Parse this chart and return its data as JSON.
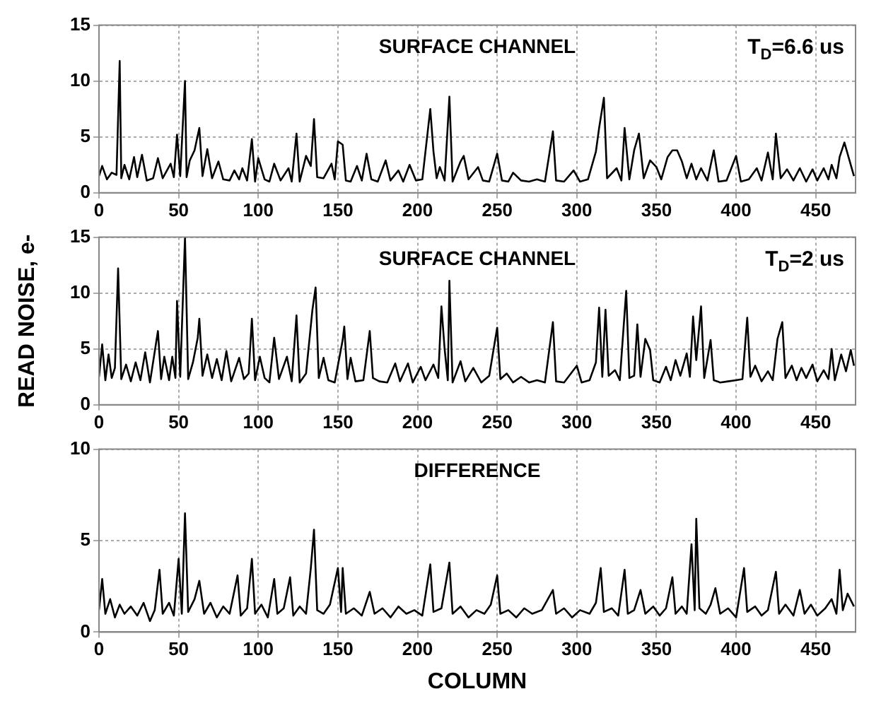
{
  "chart_data": [
    {
      "type": "line",
      "annotations": [
        "SURFACE CHANNEL",
        "T$_{D}$=6.6 us"
      ],
      "xlim": [
        0,
        475
      ],
      "xticks": [
        0,
        50,
        100,
        150,
        200,
        250,
        300,
        350,
        400,
        450
      ],
      "ylim": [
        0,
        15
      ],
      "yticks": [
        0,
        5,
        10,
        15
      ],
      "grid": true,
      "marker": "none",
      "line_style": "solid",
      "series": [
        {
          "color": "#000000",
          "x": [
            0,
            2,
            5,
            8,
            11,
            13,
            14,
            16,
            19,
            22,
            24,
            27,
            30,
            34,
            37,
            40,
            45,
            47,
            49,
            51,
            54,
            55,
            57,
            60,
            63,
            65,
            68,
            71,
            75,
            78,
            82,
            85,
            88,
            90,
            93,
            96,
            98,
            100,
            104,
            107,
            110,
            114,
            119,
            121,
            124,
            126,
            130,
            133,
            135,
            137,
            141,
            146,
            148,
            150,
            153,
            155,
            158,
            162,
            165,
            168,
            171,
            175,
            180,
            183,
            188,
            191,
            195,
            199,
            203,
            208,
            210,
            212,
            214,
            217,
            220,
            222,
            227,
            229,
            232,
            238,
            241,
            245,
            250,
            253,
            257,
            260,
            265,
            270,
            275,
            280,
            285,
            287,
            292,
            298,
            302,
            307,
            312,
            314,
            317,
            319,
            325,
            328,
            330,
            333,
            336,
            339,
            342,
            346,
            350,
            353,
            357,
            360,
            363,
            366,
            369,
            372,
            375,
            378,
            382,
            386,
            389,
            394,
            400,
            403,
            408,
            413,
            416,
            420,
            423,
            425,
            428,
            432,
            436,
            440,
            444,
            448,
            451,
            455,
            458,
            460,
            463,
            465,
            468,
            471,
            474
          ],
          "values": [
            1.5,
            2.4,
            1.2,
            1.8,
            1.6,
            11.8,
            1.3,
            2.5,
            1.2,
            3.2,
            1.4,
            3.4,
            1.1,
            1.3,
            3.1,
            1.3,
            2.6,
            1.4,
            5.2,
            1.5,
            10,
            1.4,
            2.9,
            3.8,
            5.8,
            1.5,
            3.9,
            1.3,
            2.8,
            1.2,
            1.1,
            2,
            1.2,
            2.2,
            1.1,
            4.8,
            1.0,
            3.1,
            1.2,
            1.0,
            2.6,
            1.1,
            2.2,
            1.0,
            5.3,
            1.0,
            3.3,
            2.4,
            6.6,
            1.4,
            1.3,
            2.6,
            1.2,
            4.6,
            4.3,
            1.1,
            1.0,
            2.4,
            1.1,
            3.5,
            1.2,
            1.0,
            2.9,
            1.1,
            2,
            1.0,
            2.5,
            1.1,
            1.2,
            7.5,
            3.7,
            1.3,
            2.3,
            1.1,
            8.6,
            1.0,
            2.8,
            3.3,
            1.2,
            2.3,
            1.1,
            1.0,
            3.5,
            1.1,
            1.0,
            1.8,
            1.1,
            1.0,
            1.2,
            1.0,
            5.5,
            1.1,
            1.0,
            2.0,
            1.0,
            1.2,
            3.7,
            5.8,
            8.5,
            1.3,
            2.2,
            1.1,
            5.8,
            1.2,
            3.8,
            5.3,
            1.3,
            2.9,
            2.3,
            1.2,
            3.2,
            3.8,
            3.8,
            2.8,
            1.3,
            2.6,
            1.2,
            2.2,
            1.1,
            3.8,
            1.0,
            1.1,
            3.3,
            1.0,
            1.2,
            2.2,
            1.1,
            3.6,
            1.2,
            5.3,
            1.3,
            2.1,
            1.1,
            2.2,
            1.0,
            2.1,
            1.1,
            2.2,
            1.2,
            2.5,
            1.3,
            3.2,
            4.5,
            3.0,
            1.5
          ]
        }
      ]
    },
    {
      "type": "line",
      "ylabel": "READ NOISE, e-",
      "annotations": [
        "SURFACE CHANNEL",
        "T$_{D}$=2 us"
      ],
      "xlim": [
        0,
        475
      ],
      "xticks": [
        0,
        50,
        100,
        150,
        200,
        250,
        300,
        350,
        400,
        450
      ],
      "ylim": [
        0,
        15
      ],
      "yticks": [
        0,
        5,
        10,
        15
      ],
      "grid": true,
      "marker": "none",
      "line_style": "solid",
      "series": [
        {
          "color": "#000000",
          "x": [
            0,
            2,
            4,
            6,
            8,
            10,
            12,
            14,
            17,
            20,
            23,
            26,
            29,
            32,
            37,
            39,
            41,
            44,
            46,
            48,
            49,
            51,
            54,
            56,
            59,
            62,
            63,
            65,
            68,
            71,
            74,
            77,
            80,
            83,
            88,
            91,
            94,
            96,
            98,
            101,
            104,
            107,
            110,
            113,
            118,
            121,
            124,
            126,
            130,
            134,
            136,
            138,
            141,
            144,
            148,
            153,
            154,
            156,
            158,
            161,
            166,
            170,
            172,
            176,
            181,
            186,
            189,
            194,
            197,
            202,
            205,
            210,
            213,
            215,
            217,
            219,
            220,
            222,
            227,
            230,
            235,
            240,
            245,
            250,
            252,
            256,
            260,
            265,
            270,
            275,
            280,
            285,
            287,
            292,
            300,
            303,
            308,
            312,
            314,
            316,
            318,
            320,
            324,
            327,
            331,
            333,
            336,
            338,
            340,
            343,
            346,
            348,
            352,
            356,
            359,
            362,
            365,
            369,
            371,
            373,
            375,
            378,
            380,
            384,
            386,
            390,
            395,
            400,
            404,
            407,
            409,
            412,
            416,
            420,
            423,
            426,
            429,
            431,
            435,
            438,
            441,
            444,
            448,
            451,
            455,
            458,
            460,
            462,
            466,
            469,
            472,
            474
          ],
          "values": [
            2.5,
            5.4,
            2.2,
            4.5,
            2.4,
            3.3,
            12.2,
            2.3,
            3.6,
            2.1,
            3.8,
            2.2,
            4.7,
            2.0,
            6.6,
            2.3,
            4.3,
            2.2,
            4.3,
            2.4,
            9.3,
            2.5,
            15,
            2.3,
            3.8,
            6.0,
            7.7,
            2.6,
            4.5,
            2.4,
            4.1,
            2.2,
            4.8,
            2.1,
            4.2,
            2.3,
            2.8,
            7.7,
            2.2,
            4.3,
            2.4,
            2.0,
            6.0,
            2.3,
            4.3,
            2.1,
            8.0,
            2.0,
            2.8,
            8.5,
            10.5,
            2.4,
            4.2,
            2.2,
            2.0,
            5.8,
            7.0,
            2.3,
            4.2,
            2.1,
            2.2,
            6.6,
            2.4,
            2.1,
            2.0,
            3.7,
            2.1,
            3.7,
            2.0,
            3.4,
            2.2,
            3.6,
            2.4,
            8.8,
            5.0,
            2.2,
            11.1,
            2.0,
            3.9,
            2.1,
            3.3,
            2.0,
            2.6,
            6.9,
            2.3,
            2.8,
            2.0,
            2.5,
            2.0,
            2.2,
            2.0,
            7.4,
            2.1,
            2.0,
            3.5,
            2.0,
            2.2,
            3.8,
            8.7,
            2.5,
            8.5,
            2.6,
            3.1,
            2.2,
            10.2,
            2.4,
            2.6,
            7.2,
            2.5,
            5.9,
            4.9,
            2.2,
            2.0,
            3.4,
            2.2,
            4.0,
            2.6,
            4.6,
            2.5,
            7.9,
            4.0,
            8.8,
            2.4,
            5.8,
            2.2,
            2.0,
            2.1,
            2.2,
            2.3,
            7.8,
            2.5,
            3.5,
            2.1,
            3.0,
            2.2,
            5.9,
            7.4,
            2.4,
            3.5,
            2.2,
            3.3,
            2.4,
            3.6,
            2.1,
            3.1,
            2.3,
            5.0,
            2.2,
            4.5,
            3.0,
            4.9,
            3.5
          ]
        }
      ]
    },
    {
      "type": "line",
      "xlabel": "COLUMN",
      "annotations": [
        "DIFFERENCE"
      ],
      "xlim": [
        0,
        475
      ],
      "xticks": [
        0,
        50,
        100,
        150,
        200,
        250,
        300,
        350,
        400,
        450
      ],
      "ylim": [
        0,
        10
      ],
      "yticks": [
        0,
        5,
        10
      ],
      "grid": true,
      "marker": "none",
      "line_style": "solid",
      "series": [
        {
          "color": "#000000",
          "x": [
            0,
            2,
            4,
            7,
            10,
            13,
            16,
            20,
            24,
            28,
            32,
            35,
            38,
            40,
            44,
            47,
            50,
            52,
            54,
            56,
            60,
            63,
            66,
            70,
            74,
            78,
            82,
            87,
            89,
            93,
            96,
            98,
            102,
            106,
            110,
            112,
            116,
            120,
            122,
            126,
            130,
            133,
            135,
            137,
            141,
            145,
            150,
            152,
            153,
            155,
            160,
            165,
            170,
            173,
            178,
            183,
            188,
            193,
            198,
            203,
            208,
            210,
            215,
            220,
            222,
            227,
            232,
            237,
            242,
            246,
            250,
            252,
            257,
            262,
            267,
            272,
            278,
            285,
            287,
            292,
            297,
            302,
            308,
            312,
            315,
            317,
            322,
            326,
            330,
            332,
            336,
            340,
            343,
            348,
            352,
            356,
            360,
            362,
            366,
            369,
            372,
            374,
            375,
            377,
            381,
            384,
            387,
            390,
            395,
            400,
            405,
            407,
            412,
            416,
            420,
            425,
            427,
            431,
            436,
            440,
            443,
            447,
            451,
            456,
            460,
            463,
            465,
            467,
            470,
            474
          ],
          "values": [
            1.2,
            2.9,
            1.0,
            1.8,
            0.8,
            1.5,
            1.0,
            1.4,
            0.9,
            1.6,
            0.6,
            1.2,
            3.4,
            1.0,
            1.6,
            0.9,
            4.0,
            1.0,
            6.5,
            1.1,
            1.8,
            2.8,
            1.0,
            1.6,
            0.8,
            1.4,
            1.0,
            3.1,
            0.9,
            1.3,
            4.0,
            1.0,
            1.5,
            0.8,
            2.9,
            1.0,
            1.3,
            3.0,
            0.9,
            1.4,
            1.0,
            3.5,
            5.6,
            1.2,
            1.0,
            1.5,
            3.5,
            1.1,
            3.5,
            1.0,
            1.3,
            0.9,
            2.2,
            1.0,
            1.3,
            0.8,
            1.4,
            1.0,
            1.2,
            0.9,
            3.7,
            1.1,
            1.3,
            3.8,
            1.0,
            1.4,
            0.8,
            1.2,
            1.0,
            1.5,
            3.1,
            1.0,
            1.2,
            0.8,
            1.3,
            1.0,
            1.2,
            2.3,
            1.0,
            1.3,
            0.8,
            1.2,
            1.0,
            1.6,
            3.5,
            1.1,
            1.3,
            0.9,
            3.4,
            1.0,
            1.2,
            2.3,
            1.0,
            1.4,
            0.9,
            1.3,
            3.0,
            1.0,
            1.4,
            1.0,
            4.8,
            1.2,
            6.2,
            1.3,
            1.0,
            1.5,
            2.4,
            1.0,
            1.3,
            0.8,
            3.5,
            1.1,
            1.4,
            0.9,
            1.2,
            3.3,
            1.0,
            1.5,
            0.9,
            2.3,
            1.0,
            1.5,
            0.9,
            1.3,
            1.8,
            1.0,
            3.4,
            1.2,
            2.1,
            1.4
          ]
        }
      ]
    }
  ]
}
